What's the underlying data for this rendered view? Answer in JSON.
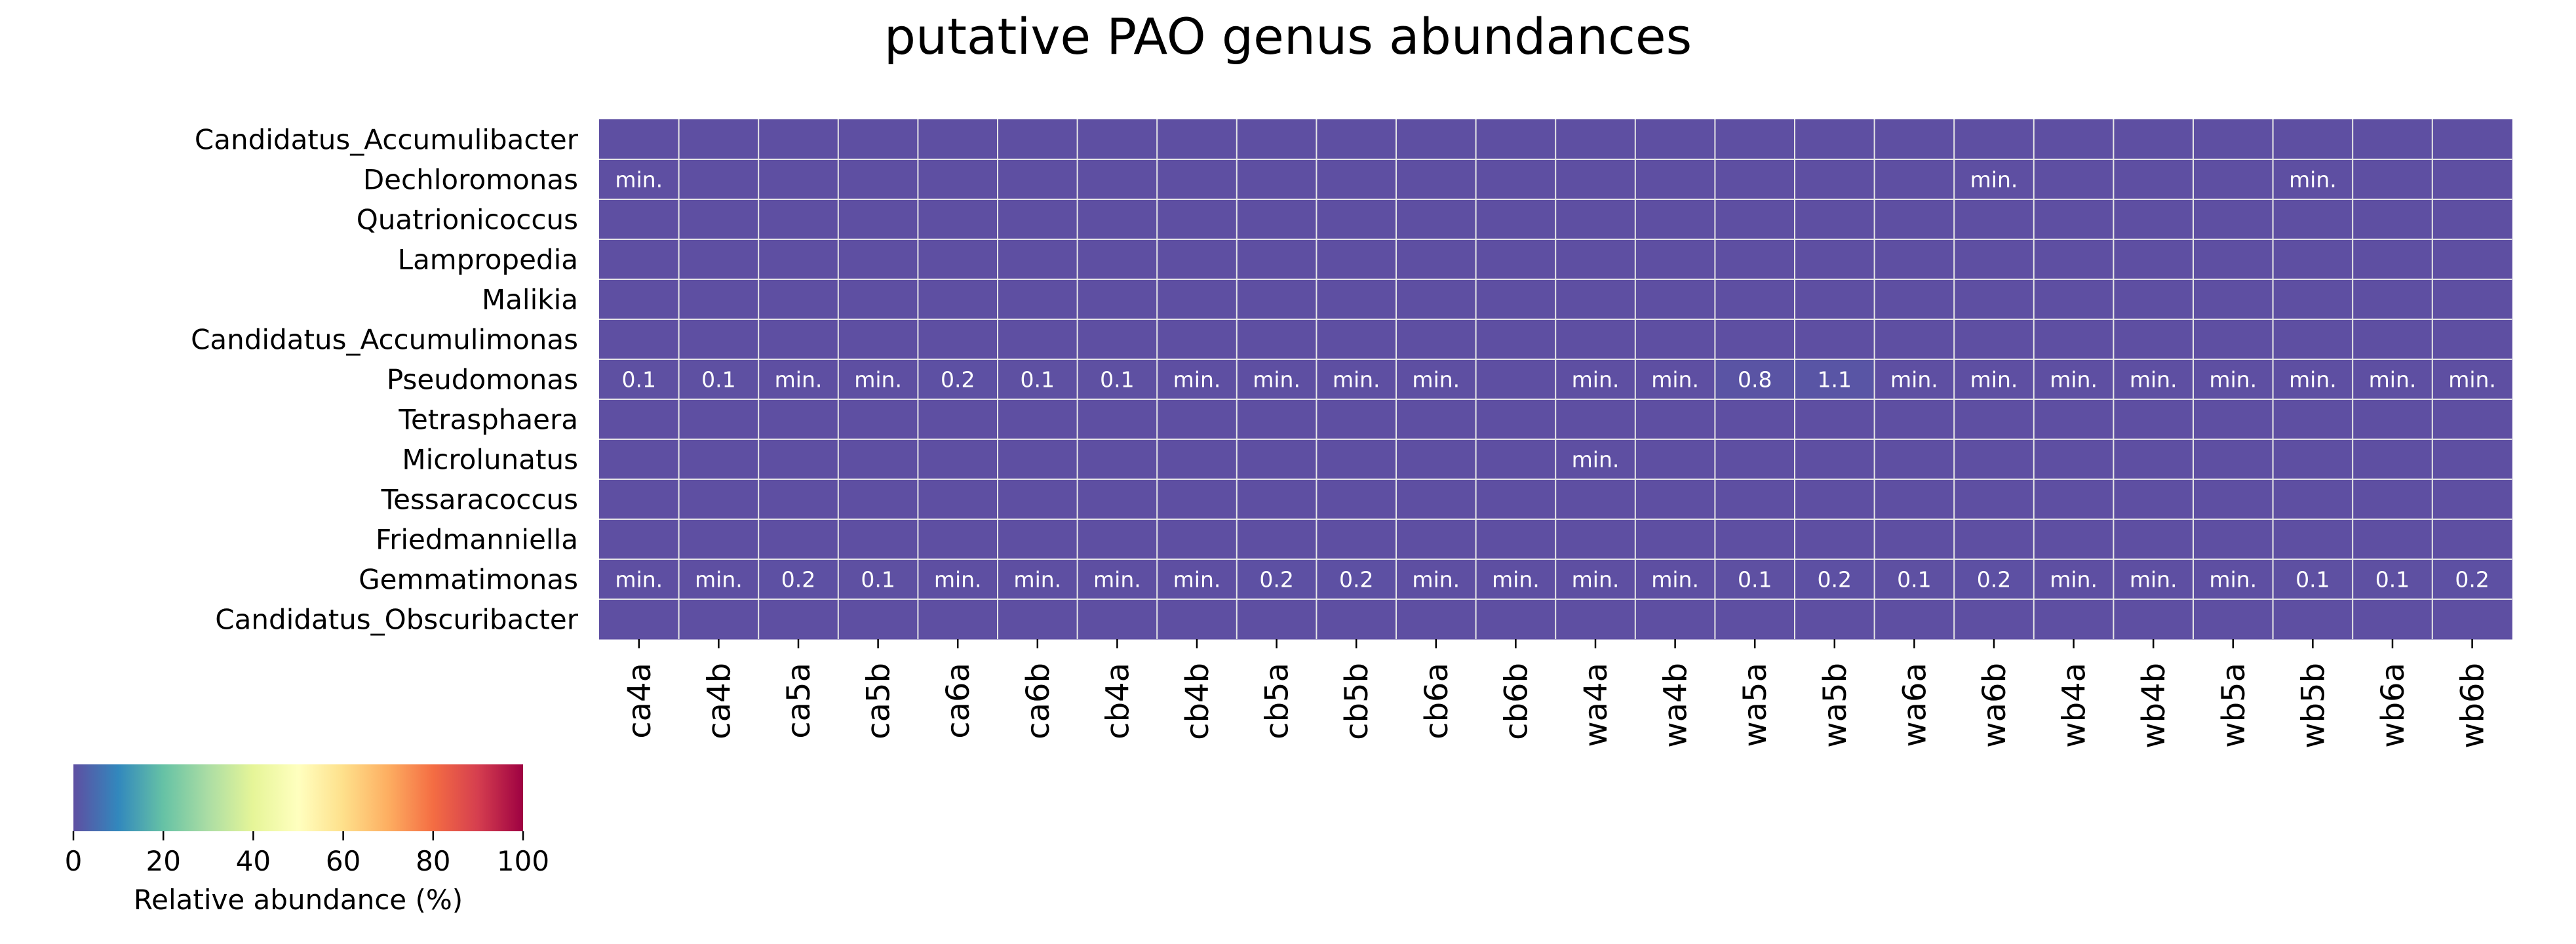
{
  "chart_data": {
    "type": "heatmap",
    "title": "putative PAO genus abundances",
    "rows": [
      "Candidatus_Accumulibacter",
      "Dechloromonas",
      "Quatrionicoccus",
      "Lampropedia",
      "Malikia",
      "Candidatus_Accumulimonas",
      "Pseudomonas",
      "Tetrasphaera",
      "Microlunatus",
      "Tessaracoccus",
      "Friedmanniella",
      "Gemmatimonas",
      "Candidatus_Obscuribacter"
    ],
    "columns": [
      "ca4a",
      "ca4b",
      "ca5a",
      "ca5b",
      "ca6a",
      "ca6b",
      "cb4a",
      "cb4b",
      "cb5a",
      "cb5b",
      "cb6a",
      "cb6b",
      "wa4a",
      "wa4b",
      "wa5a",
      "wa5b",
      "wa6a",
      "wa6b",
      "wb4a",
      "wb4b",
      "wb5a",
      "wb5b",
      "wb6a",
      "wb6b"
    ],
    "cell_labels": [
      [
        "",
        "",
        "",
        "",
        "",
        "",
        "",
        "",
        "",
        "",
        "",
        "",
        "",
        "",
        "",
        "",
        "",
        "",
        "",
        "",
        "",
        "",
        "",
        ""
      ],
      [
        "min.",
        "",
        "",
        "",
        "",
        "",
        "",
        "",
        "",
        "",
        "",
        "",
        "",
        "",
        "",
        "",
        "",
        "min.",
        "",
        "",
        "",
        "min.",
        "",
        ""
      ],
      [
        "",
        "",
        "",
        "",
        "",
        "",
        "",
        "",
        "",
        "",
        "",
        "",
        "",
        "",
        "",
        "",
        "",
        "",
        "",
        "",
        "",
        "",
        "",
        ""
      ],
      [
        "",
        "",
        "",
        "",
        "",
        "",
        "",
        "",
        "",
        "",
        "",
        "",
        "",
        "",
        "",
        "",
        "",
        "",
        "",
        "",
        "",
        "",
        "",
        ""
      ],
      [
        "",
        "",
        "",
        "",
        "",
        "",
        "",
        "",
        "",
        "",
        "",
        "",
        "",
        "",
        "",
        "",
        "",
        "",
        "",
        "",
        "",
        "",
        "",
        ""
      ],
      [
        "",
        "",
        "",
        "",
        "",
        "",
        "",
        "",
        "",
        "",
        "",
        "",
        "",
        "",
        "",
        "",
        "",
        "",
        "",
        "",
        "",
        "",
        "",
        ""
      ],
      [
        "0.1",
        "0.1",
        "min.",
        "min.",
        "0.2",
        "0.1",
        "0.1",
        "min.",
        "min.",
        "min.",
        "min.",
        "",
        "min.",
        "min.",
        "0.8",
        "1.1",
        "min.",
        "min.",
        "min.",
        "min.",
        "min.",
        "min.",
        "min.",
        "min."
      ],
      [
        "",
        "",
        "",
        "",
        "",
        "",
        "",
        "",
        "",
        "",
        "",
        "",
        "",
        "",
        "",
        "",
        "",
        "",
        "",
        "",
        "",
        "",
        "",
        ""
      ],
      [
        "",
        "",
        "",
        "",
        "",
        "",
        "",
        "",
        "",
        "",
        "",
        "",
        "min.",
        "",
        "",
        "",
        "",
        "",
        "",
        "",
        "",
        "",
        "",
        ""
      ],
      [
        "",
        "",
        "",
        "",
        "",
        "",
        "",
        "",
        "",
        "",
        "",
        "",
        "",
        "",
        "",
        "",
        "",
        "",
        "",
        "",
        "",
        "",
        "",
        ""
      ],
      [
        "",
        "",
        "",
        "",
        "",
        "",
        "",
        "",
        "",
        "",
        "",
        "",
        "",
        "",
        "",
        "",
        "",
        "",
        "",
        "",
        "",
        "",
        "",
        ""
      ],
      [
        "min.",
        "min.",
        "0.2",
        "0.1",
        "min.",
        "min.",
        "min.",
        "min.",
        "0.2",
        "0.2",
        "min.",
        "min.",
        "min.",
        "min.",
        "0.1",
        "0.2",
        "0.1",
        "0.2",
        "min.",
        "min.",
        "min.",
        "0.1",
        "0.1",
        "0.2"
      ],
      [
        "",
        "",
        "",
        "",
        "",
        "",
        "",
        "",
        "",
        "",
        "",
        "",
        "",
        "",
        "",
        "",
        "",
        "",
        "",
        "",
        "",
        "",
        "",
        ""
      ]
    ],
    "values": [
      [
        0,
        0,
        0,
        0,
        0,
        0,
        0,
        0,
        0,
        0,
        0,
        0,
        0,
        0,
        0,
        0,
        0,
        0,
        0,
        0,
        0,
        0,
        0,
        0
      ],
      [
        0.01,
        0,
        0,
        0,
        0,
        0,
        0,
        0,
        0,
        0,
        0,
        0,
        0,
        0,
        0,
        0,
        0,
        0.01,
        0,
        0,
        0,
        0.01,
        0,
        0
      ],
      [
        0,
        0,
        0,
        0,
        0,
        0,
        0,
        0,
        0,
        0,
        0,
        0,
        0,
        0,
        0,
        0,
        0,
        0,
        0,
        0,
        0,
        0,
        0,
        0
      ],
      [
        0,
        0,
        0,
        0,
        0,
        0,
        0,
        0,
        0,
        0,
        0,
        0,
        0,
        0,
        0,
        0,
        0,
        0,
        0,
        0,
        0,
        0,
        0,
        0
      ],
      [
        0,
        0,
        0,
        0,
        0,
        0,
        0,
        0,
        0,
        0,
        0,
        0,
        0,
        0,
        0,
        0,
        0,
        0,
        0,
        0,
        0,
        0,
        0,
        0
      ],
      [
        0,
        0,
        0,
        0,
        0,
        0,
        0,
        0,
        0,
        0,
        0,
        0,
        0,
        0,
        0,
        0,
        0,
        0,
        0,
        0,
        0,
        0,
        0,
        0
      ],
      [
        0.1,
        0.1,
        0.01,
        0.01,
        0.2,
        0.1,
        0.1,
        0.01,
        0.01,
        0.01,
        0.01,
        0,
        0.01,
        0.01,
        0.8,
        1.1,
        0.01,
        0.01,
        0.01,
        0.01,
        0.01,
        0.01,
        0.01,
        0.01
      ],
      [
        0,
        0,
        0,
        0,
        0,
        0,
        0,
        0,
        0,
        0,
        0,
        0,
        0,
        0,
        0,
        0,
        0,
        0,
        0,
        0,
        0,
        0,
        0,
        0
      ],
      [
        0,
        0,
        0,
        0,
        0,
        0,
        0,
        0,
        0,
        0,
        0,
        0,
        0.01,
        0,
        0,
        0,
        0,
        0,
        0,
        0,
        0,
        0,
        0,
        0
      ],
      [
        0,
        0,
        0,
        0,
        0,
        0,
        0,
        0,
        0,
        0,
        0,
        0,
        0,
        0,
        0,
        0,
        0,
        0,
        0,
        0,
        0,
        0,
        0,
        0
      ],
      [
        0,
        0,
        0,
        0,
        0,
        0,
        0,
        0,
        0,
        0,
        0,
        0,
        0,
        0,
        0,
        0,
        0,
        0,
        0,
        0,
        0,
        0,
        0,
        0
      ],
      [
        0.01,
        0.01,
        0.2,
        0.1,
        0.01,
        0.01,
        0.01,
        0.01,
        0.2,
        0.2,
        0.01,
        0.01,
        0.01,
        0.01,
        0.1,
        0.2,
        0.1,
        0.2,
        0.01,
        0.01,
        0.01,
        0.1,
        0.1,
        0.2
      ],
      [
        0,
        0,
        0,
        0,
        0,
        0,
        0,
        0,
        0,
        0,
        0,
        0,
        0,
        0,
        0,
        0,
        0,
        0,
        0,
        0,
        0,
        0,
        0,
        0
      ]
    ],
    "colorbar": {
      "label": "Relative abundance (%)",
      "range": [
        0,
        100
      ],
      "ticks": [
        "0",
        "20",
        "40",
        "60",
        "80",
        "100"
      ],
      "colormap": "Spectral_r",
      "stops": [
        "#5e4fa2",
        "#3288bd",
        "#66c2a5",
        "#abdda4",
        "#e6f598",
        "#ffffbf",
        "#fee08b",
        "#fdae61",
        "#f46d43",
        "#d53e4f",
        "#9e0142"
      ]
    },
    "grid_line_color": "#e6e6e6"
  }
}
